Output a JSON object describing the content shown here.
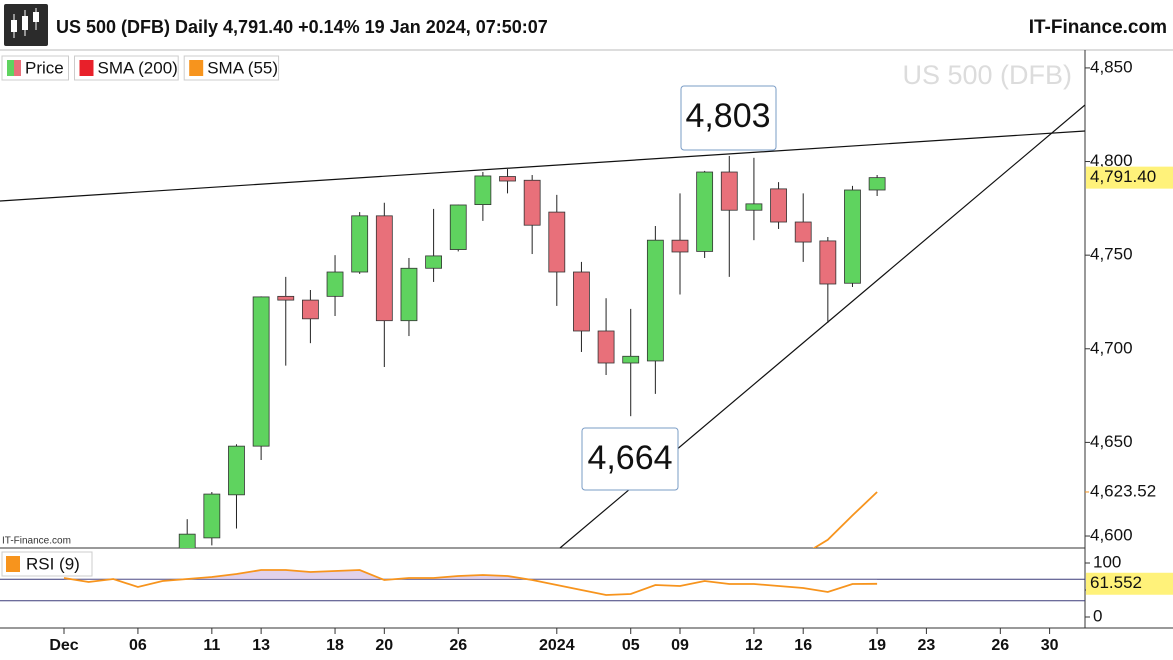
{
  "header": {
    "brand": "IT-Finance.com",
    "source_note": "IT-Finance.com"
  },
  "chart_data": [
    {
      "type": "candlestick",
      "title": "US 500 (DFB) Daily 4,791.40 +0.14% 19 Jan 2024, 07:50:07",
      "watermark": "US 500 (DFB)",
      "categories": [
        "Dec",
        null,
        null,
        "06",
        null,
        null,
        "11",
        null,
        "13",
        null,
        null,
        "18",
        null,
        "20",
        null,
        null,
        "26",
        null,
        null,
        null,
        "2024",
        null,
        null,
        "05",
        null,
        "09",
        null,
        null,
        "12",
        null,
        "16",
        null,
        null,
        "19",
        null,
        "23",
        null,
        null,
        "26",
        null,
        "30",
        null
      ],
      "series": [
        {
          "name": "Price",
          "up_color": "#5fd35f",
          "down_color": "#e8707a",
          "open": [
            null,
            null,
            null,
            null,
            null,
            4592,
            4599,
            4622,
            4648,
            4728,
            4726,
            4728,
            4741,
            4771,
            4715,
            4743,
            4753,
            4777,
            4792,
            4790,
            4773,
            4741,
            4709.5,
            4692.4,
            4693.5,
            4758,
            4752,
            4794.4,
            4774,
            4785.4,
            4767.7,
            4757.6,
            4735,
            4784.8,
            null,
            null,
            null,
            null,
            null,
            null,
            null,
            null
          ],
          "high": [
            null,
            null,
            null,
            null,
            null,
            4609,
            4623.5,
            4649,
            4728,
            4738.4,
            4731.4,
            4750,
            4773,
            4778,
            4748.5,
            4774.7,
            4777,
            4794.4,
            4796,
            4792.8,
            4782.2,
            4746.4,
            4727,
            4721.3,
            4765.6,
            4783,
            4795,
            4803,
            4802,
            4789,
            4783,
            4759.7,
            4787,
            4792.8,
            null,
            null,
            null,
            null,
            null,
            null,
            null,
            null
          ],
          "low": [
            null,
            null,
            null,
            null,
            null,
            4585,
            4595,
            4604,
            4640.6,
            4691,
            4703,
            4717.5,
            4740,
            4690.3,
            4706.8,
            4735.7,
            4752,
            4768.3,
            4783,
            4750.6,
            4722.9,
            4698.3,
            4686,
            4664,
            4675.9,
            4729,
            4748.5,
            4738.4,
            4758,
            4764,
            4746.4,
            4713.8,
            4733,
            4781.6,
            null,
            null,
            null,
            null,
            null,
            null,
            null,
            null
          ],
          "close": [
            null,
            null,
            null,
            null,
            null,
            4601,
            4622.4,
            4648,
            4727.7,
            4726,
            4716,
            4741,
            4771,
            4715,
            4743,
            4749.6,
            4776.8,
            4792.3,
            4789.6,
            4766,
            4741,
            4709.5,
            4692.4,
            4696,
            4758,
            4751.7,
            4794.4,
            4774,
            4777.4,
            4767.7,
            4757,
            4734.6,
            4784.8,
            4791.4,
            null,
            null,
            null,
            null,
            null,
            null,
            null,
            null
          ],
          "last_value": {
            "value": 4791.4,
            "label": "4,791.40"
          }
        },
        {
          "name": "SMA (200)",
          "color": "#e8202a",
          "values": [
            null,
            null,
            null,
            null,
            null,
            null,
            null,
            null,
            null,
            null,
            null,
            null,
            null,
            null,
            null,
            null,
            null,
            null,
            null,
            null,
            null,
            null,
            null,
            null,
            null,
            null,
            null,
            null,
            null,
            null,
            null,
            null,
            null,
            null,
            null,
            null,
            null,
            null,
            null,
            null,
            null,
            null
          ]
        },
        {
          "name": "SMA (55)",
          "color": "#f7941d",
          "values": [
            null,
            null,
            null,
            null,
            null,
            null,
            null,
            null,
            null,
            null,
            null,
            null,
            null,
            null,
            null,
            null,
            null,
            null,
            null,
            null,
            null,
            null,
            null,
            null,
            null,
            null,
            null,
            null,
            null,
            null,
            4590,
            4598,
            4611,
            4623.52,
            null,
            null,
            null,
            null,
            null,
            null,
            null,
            null
          ],
          "last_value": {
            "value": 4623.52,
            "label": "4,623.52"
          }
        }
      ],
      "ylim": [
        4593.6,
        4856.9
      ],
      "yticks": [
        {
          "value": 4850,
          "label": "4,850"
        },
        {
          "value": 4800,
          "label": "4,800"
        },
        {
          "value": 4750,
          "label": "4,750"
        },
        {
          "value": 4700,
          "label": "4,700"
        },
        {
          "value": 4650,
          "label": "4,650"
        },
        {
          "value": 4600,
          "label": "4,600"
        }
      ],
      "annotations": [
        "4,803",
        "4,664"
      ]
    },
    {
      "type": "line",
      "series": [
        {
          "name": "RSI (9)",
          "color": "#f7941d",
          "values": [
            72.2,
            64.8,
            70.4,
            55.6,
            66.7,
            70.4,
            74.1,
            79.6,
            87,
            87,
            83.3,
            85.2,
            87,
            68.5,
            72.2,
            72.2,
            75.9,
            77.8,
            75.9,
            68.5,
            59.3,
            50,
            40.7,
            42.6,
            59.3,
            57.4,
            66.7,
            61.1,
            61.1,
            57.4,
            53.7,
            46.3,
            61.1,
            61.552,
            null,
            null,
            null,
            null,
            null,
            null,
            null,
            null
          ],
          "last_value": {
            "value": 61.552,
            "label": "61.552"
          }
        }
      ],
      "ylim": [
        0,
        100
      ],
      "yticks": [
        100,
        50,
        0
      ],
      "levels": [
        70,
        30
      ]
    }
  ]
}
